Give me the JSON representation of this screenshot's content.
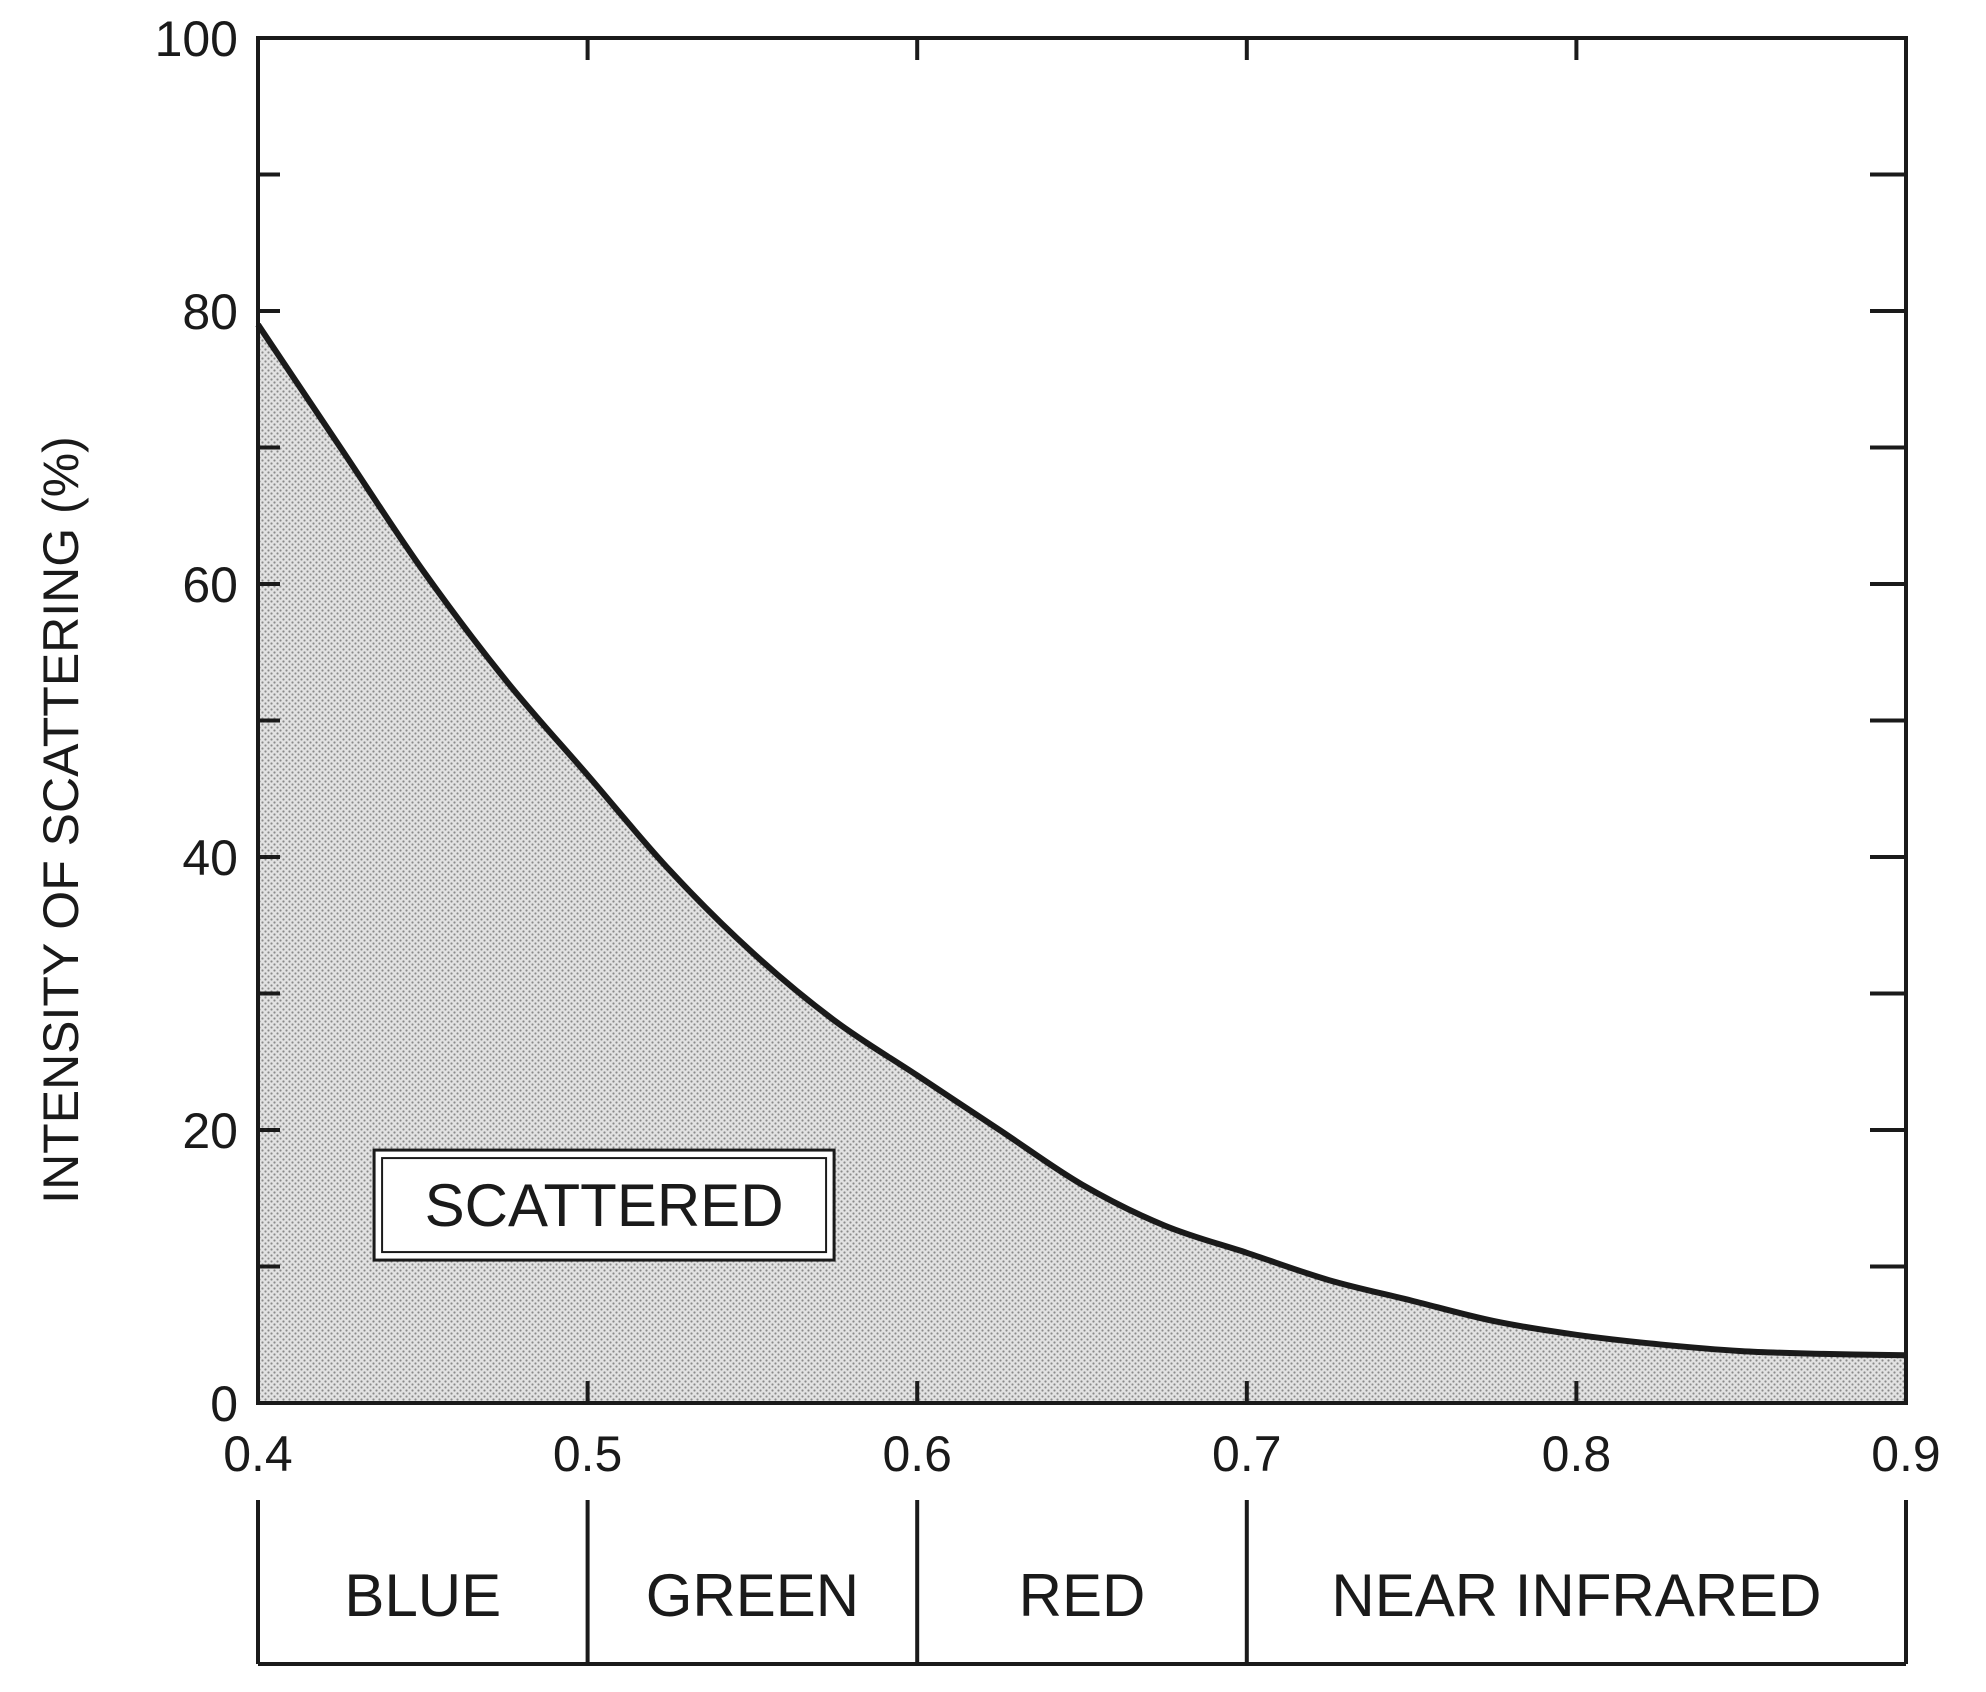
{
  "chart_data": {
    "type": "area",
    "title": "",
    "xlabel": "",
    "ylabel": "INTENSITY OF SCATTERING (%)",
    "xlim": [
      0.4,
      0.9
    ],
    "ylim": [
      0,
      100
    ],
    "x_ticks": [
      "0.4",
      "0.5",
      "0.6",
      "0.7",
      "0.8",
      "0.9"
    ],
    "y_ticks": [
      "0",
      "20",
      "40",
      "60",
      "80",
      "100"
    ],
    "grid": false,
    "series": [
      {
        "x": [
          0.4,
          0.425,
          0.45,
          0.475,
          0.5,
          0.525,
          0.55,
          0.575,
          0.6,
          0.625,
          0.65,
          0.675,
          0.7,
          0.725,
          0.75,
          0.775,
          0.8,
          0.825,
          0.85,
          0.875,
          0.9
        ],
        "y": [
          79,
          70,
          61,
          53,
          46,
          39,
          33,
          28,
          24,
          20,
          16,
          13,
          11,
          9,
          7.5,
          6,
          5,
          4.3,
          3.8,
          3.6,
          3.5
        ]
      }
    ],
    "annotations": [
      {
        "text": "SCATTERED",
        "x": 0.505,
        "y": 14.5,
        "boxed": true
      }
    ],
    "bands": [
      {
        "label": "BLUE",
        "from": 0.4,
        "to": 0.5
      },
      {
        "label": "GREEN",
        "from": 0.5,
        "to": 0.6
      },
      {
        "label": "RED",
        "from": 0.6,
        "to": 0.7
      },
      {
        "label": "NEAR  INFRARED",
        "from": 0.7,
        "to": 0.9
      }
    ],
    "colors": {
      "ink": "#1a1a1a",
      "fill": "#c8c8c8",
      "background": "#ffffff"
    }
  }
}
